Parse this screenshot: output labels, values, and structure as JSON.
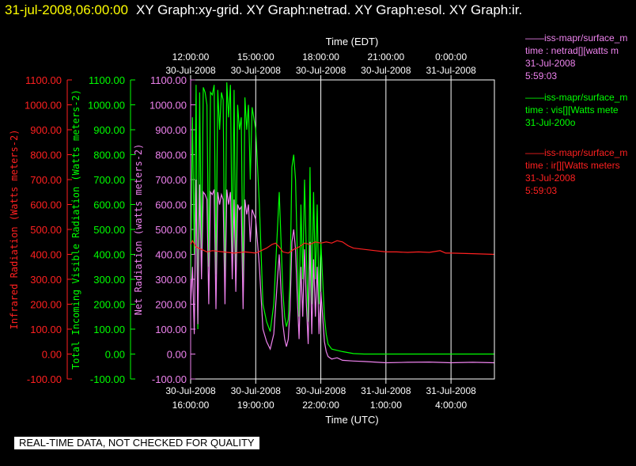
{
  "window": {
    "date_time": "31-jul-2008,06:00:00",
    "graph_names": "XY Graph:xy-grid.  XY Graph:netrad.  XY Graph:esol.  XY Graph:ir."
  },
  "footer": {
    "quality_note": "REAL-TIME DATA, NOT CHECKED FOR QUALITY"
  },
  "legends": [
    {
      "lines": [
        "——iss-mapr/surface_m",
        "time : netrad[][watts m",
        "31-Jul-2008",
        "5:59:03"
      ],
      "color": "#ee82ee"
    },
    {
      "lines": [
        "——iss-mapr/surface_m",
        "time : vis[][Watts mete",
        "31-Jul-200o"
      ],
      "color": "#00ff00"
    },
    {
      "lines": [
        "——iss-mapr/surface_m",
        "time : ir[][Watts meters",
        "31-Jul-2008",
        "5:59:03"
      ],
      "color": "#ff2020"
    }
  ],
  "chart_data": {
    "type": "line",
    "top_axis_title": "Time (EDT)",
    "bottom_axis_title": "Time (UTC)",
    "top_ticks": [
      {
        "date": "30-Jul-2008",
        "time": "12:00:00"
      },
      {
        "date": "30-Jul-2008",
        "time": "15:00:00"
      },
      {
        "date": "30-Jul-2008",
        "time": "18:00:00"
      },
      {
        "date": "30-Jul-2008",
        "time": "21:00:00"
      },
      {
        "date": "31-Jul-2008",
        "time": "0:00:00"
      }
    ],
    "bottom_ticks": [
      {
        "date": "30-Jul-2008",
        "time": "16:00:00"
      },
      {
        "date": "30-Jul-2008",
        "time": "19:00:00"
      },
      {
        "date": "30-Jul-2008",
        "time": "22:00:00"
      },
      {
        "date": "31-Jul-2008",
        "time": "1:00:00"
      },
      {
        "date": "31-Jul-2008",
        "time": "4:00:00"
      }
    ],
    "xlim_utc": [
      "2008-07-30 16:00:00",
      "2008-07-31 06:00:00"
    ],
    "y_axes": [
      {
        "id": "ir",
        "label": "Infrared Radiation (Watts meters-2)",
        "color": "#ff2020",
        "ticks": [
          "1100.00",
          "1000.00",
          "900.00",
          "800.00",
          "700.00",
          "600.00",
          "500.00",
          "400.00",
          "300.00",
          "200.00",
          "100.00",
          "0.00",
          "-100.00"
        ],
        "ylim": [
          -100,
          1100
        ]
      },
      {
        "id": "vis",
        "label": "Total Incoming Visible Radiation (Watts meters-2)",
        "color": "#00ff00",
        "ticks": [
          "1100.00",
          "1000.00",
          "900.00",
          "800.00",
          "700.00",
          "600.00",
          "500.00",
          "400.00",
          "300.00",
          "200.00",
          "100.00",
          "0.00",
          "-100.00"
        ],
        "ylim": [
          -100,
          1100
        ]
      },
      {
        "id": "netrad",
        "label": "Net Radiation (watts meters-2)",
        "color": "#ee82ee",
        "ticks": [
          "1100.00",
          "1000.00",
          "900.00",
          "800.00",
          "700.00",
          "600.00",
          "500.00",
          "400.00",
          "300.00",
          "200.00",
          "100.00",
          "0.00",
          "-100.00"
        ],
        "ylim": [
          -100,
          1100
        ]
      }
    ],
    "series": [
      {
        "color": "#00ff00",
        "axis": "vis",
        "points": [
          [
            "2008-07-30 16:00",
            300
          ],
          [
            "2008-07-30 16:05",
            950
          ],
          [
            "2008-07-30 16:10",
            400
          ],
          [
            "2008-07-30 16:15",
            1080
          ],
          [
            "2008-07-30 16:20",
            100
          ],
          [
            "2008-07-30 16:25",
            1050
          ],
          [
            "2008-07-30 16:30",
            380
          ],
          [
            "2008-07-30 16:35",
            1070
          ],
          [
            "2008-07-30 16:40",
            1050
          ],
          [
            "2008-07-30 16:45",
            1000
          ],
          [
            "2008-07-30 16:50",
            350
          ],
          [
            "2008-07-30 16:55",
            1050
          ],
          [
            "2008-07-30 17:00",
            1040
          ],
          [
            "2008-07-30 17:05",
            1080
          ],
          [
            "2008-07-30 17:10",
            320
          ],
          [
            "2008-07-30 17:15",
            1060
          ],
          [
            "2008-07-30 17:20",
            900
          ],
          [
            "2008-07-30 17:25",
            1050
          ],
          [
            "2008-07-30 17:30",
            1020
          ],
          [
            "2008-07-30 17:35",
            250
          ],
          [
            "2008-07-30 17:40",
            1090
          ],
          [
            "2008-07-30 17:45",
            950
          ],
          [
            "2008-07-30 17:50",
            1080
          ],
          [
            "2008-07-30 17:55",
            400
          ],
          [
            "2008-07-30 18:00",
            1060
          ],
          [
            "2008-07-30 18:05",
            350
          ],
          [
            "2008-07-30 18:10",
            1000
          ],
          [
            "2008-07-30 18:15",
            900
          ],
          [
            "2008-07-30 18:20",
            950
          ],
          [
            "2008-07-30 18:25",
            250
          ],
          [
            "2008-07-30 18:30",
            1030
          ],
          [
            "2008-07-30 18:35",
            900
          ],
          [
            "2008-07-30 18:40",
            1000
          ],
          [
            "2008-07-30 18:45",
            700
          ],
          [
            "2008-07-30 18:50",
            990
          ],
          [
            "2008-07-30 19:00",
            900
          ],
          [
            "2008-07-30 19:10",
            600
          ],
          [
            "2008-07-30 19:20",
            200
          ],
          [
            "2008-07-30 19:30",
            130
          ],
          [
            "2008-07-30 19:40",
            90
          ],
          [
            "2008-07-30 19:50",
            200
          ],
          [
            "2008-07-30 20:00",
            500
          ],
          [
            "2008-07-30 20:05",
            650
          ],
          [
            "2008-07-30 20:10",
            450
          ],
          [
            "2008-07-30 20:15",
            250
          ],
          [
            "2008-07-30 20:20",
            150
          ],
          [
            "2008-07-30 20:25",
            110
          ],
          [
            "2008-07-30 20:30",
            140
          ],
          [
            "2008-07-30 20:35",
            300
          ],
          [
            "2008-07-30 20:40",
            750
          ],
          [
            "2008-07-30 20:45",
            800
          ],
          [
            "2008-07-30 20:50",
            700
          ],
          [
            "2008-07-30 20:55",
            400
          ],
          [
            "2008-07-30 21:00",
            150
          ],
          [
            "2008-07-30 21:05",
            600
          ],
          [
            "2008-07-30 21:10",
            300
          ],
          [
            "2008-07-30 21:15",
            700
          ],
          [
            "2008-07-30 21:20",
            400
          ],
          [
            "2008-07-30 21:25",
            130
          ],
          [
            "2008-07-30 21:30",
            750
          ],
          [
            "2008-07-30 21:35",
            200
          ],
          [
            "2008-07-30 21:40",
            650
          ],
          [
            "2008-07-30 21:45",
            300
          ],
          [
            "2008-07-30 21:50",
            600
          ],
          [
            "2008-07-30 21:55",
            200
          ],
          [
            "2008-07-30 22:00",
            450
          ],
          [
            "2008-07-30 22:05",
            300
          ],
          [
            "2008-07-30 22:10",
            150
          ],
          [
            "2008-07-30 22:15",
            80
          ],
          [
            "2008-07-30 22:20",
            40
          ],
          [
            "2008-07-30 22:30",
            20
          ],
          [
            "2008-07-30 22:45",
            15
          ],
          [
            "2008-07-30 23:00",
            10
          ],
          [
            "2008-07-30 23:30",
            2
          ],
          [
            "2008-07-31 00:00",
            0
          ],
          [
            "2008-07-31 02:00",
            0
          ],
          [
            "2008-07-31 04:00",
            0
          ],
          [
            "2008-07-31 05:59",
            0
          ]
        ]
      },
      {
        "color": "#ee82ee",
        "axis": "netrad",
        "points": [
          [
            "2008-07-30 16:00",
            200
          ],
          [
            "2008-07-30 16:05",
            350
          ],
          [
            "2008-07-30 16:10",
            80
          ],
          [
            "2008-07-30 16:15",
            700
          ],
          [
            "2008-07-30 16:20",
            120
          ],
          [
            "2008-07-30 16:25",
            680
          ],
          [
            "2008-07-30 16:30",
            300
          ],
          [
            "2008-07-30 16:35",
            650
          ],
          [
            "2008-07-30 16:40",
            640
          ],
          [
            "2008-07-30 16:45",
            620
          ],
          [
            "2008-07-30 16:50",
            200
          ],
          [
            "2008-07-30 16:55",
            650
          ],
          [
            "2008-07-30 17:00",
            640
          ],
          [
            "2008-07-30 17:05",
            660
          ],
          [
            "2008-07-30 17:10",
            180
          ],
          [
            "2008-07-30 17:15",
            650
          ],
          [
            "2008-07-30 17:20",
            600
          ],
          [
            "2008-07-30 17:25",
            640
          ],
          [
            "2008-07-30 17:30",
            620
          ],
          [
            "2008-07-30 17:35",
            200
          ],
          [
            "2008-07-30 17:40",
            660
          ],
          [
            "2008-07-30 17:45",
            600
          ],
          [
            "2008-07-30 17:50",
            650
          ],
          [
            "2008-07-30 17:55",
            300
          ],
          [
            "2008-07-30 18:00",
            620
          ],
          [
            "2008-07-30 18:05",
            250
          ],
          [
            "2008-07-30 18:10",
            600
          ],
          [
            "2008-07-30 18:15",
            580
          ],
          [
            "2008-07-30 18:20",
            590
          ],
          [
            "2008-07-30 18:25",
            180
          ],
          [
            "2008-07-30 18:30",
            620
          ],
          [
            "2008-07-30 18:35",
            560
          ],
          [
            "2008-07-30 18:40",
            600
          ],
          [
            "2008-07-30 18:45",
            450
          ],
          [
            "2008-07-30 18:50",
            580
          ],
          [
            "2008-07-30 19:00",
            540
          ],
          [
            "2008-07-30 19:10",
            350
          ],
          [
            "2008-07-30 19:20",
            100
          ],
          [
            "2008-07-30 19:30",
            50
          ],
          [
            "2008-07-30 19:40",
            20
          ],
          [
            "2008-07-30 19:50",
            80
          ],
          [
            "2008-07-30 20:00",
            300
          ],
          [
            "2008-07-30 20:05",
            400
          ],
          [
            "2008-07-30 20:10",
            250
          ],
          [
            "2008-07-30 20:15",
            120
          ],
          [
            "2008-07-30 20:20",
            60
          ],
          [
            "2008-07-30 20:25",
            30
          ],
          [
            "2008-07-30 20:30",
            60
          ],
          [
            "2008-07-30 20:35",
            180
          ],
          [
            "2008-07-30 20:40",
            450
          ],
          [
            "2008-07-30 20:45",
            500
          ],
          [
            "2008-07-30 20:50",
            420
          ],
          [
            "2008-07-30 20:55",
            220
          ],
          [
            "2008-07-30 21:00",
            60
          ],
          [
            "2008-07-30 21:05",
            350
          ],
          [
            "2008-07-30 21:10",
            150
          ],
          [
            "2008-07-30 21:15",
            420
          ],
          [
            "2008-07-30 21:20",
            200
          ],
          [
            "2008-07-30 21:25",
            40
          ],
          [
            "2008-07-30 21:30",
            450
          ],
          [
            "2008-07-30 21:35",
            80
          ],
          [
            "2008-07-30 21:40",
            380
          ],
          [
            "2008-07-30 21:45",
            150
          ],
          [
            "2008-07-30 21:50",
            350
          ],
          [
            "2008-07-30 21:55",
            80
          ],
          [
            "2008-07-30 22:00",
            250
          ],
          [
            "2008-07-30 22:05",
            150
          ],
          [
            "2008-07-30 22:10",
            50
          ],
          [
            "2008-07-30 22:15",
            10
          ],
          [
            "2008-07-30 22:20",
            -10
          ],
          [
            "2008-07-30 22:30",
            -20
          ],
          [
            "2008-07-30 22:45",
            -15
          ],
          [
            "2008-07-30 23:00",
            -25
          ],
          [
            "2008-07-30 23:30",
            -28
          ],
          [
            "2008-07-31 00:00",
            -30
          ],
          [
            "2008-07-31 01:00",
            -35
          ],
          [
            "2008-07-31 02:00",
            -33
          ],
          [
            "2008-07-31 03:00",
            -32
          ],
          [
            "2008-07-31 04:00",
            -35
          ],
          [
            "2008-07-31 05:00",
            -33
          ],
          [
            "2008-07-31 05:59",
            -35
          ]
        ]
      },
      {
        "color": "#ff2020",
        "axis": "ir",
        "points": [
          [
            "2008-07-30 16:00",
            440
          ],
          [
            "2008-07-30 16:05",
            455
          ],
          [
            "2008-07-30 16:15",
            430
          ],
          [
            "2008-07-30 16:30",
            420
          ],
          [
            "2008-07-30 16:45",
            410
          ],
          [
            "2008-07-30 17:00",
            415
          ],
          [
            "2008-07-30 17:30",
            410
          ],
          [
            "2008-07-30 18:00",
            405
          ],
          [
            "2008-07-30 18:30",
            410
          ],
          [
            "2008-07-30 19:00",
            405
          ],
          [
            "2008-07-30 19:15",
            415
          ],
          [
            "2008-07-30 19:30",
            425
          ],
          [
            "2008-07-30 19:45",
            440
          ],
          [
            "2008-07-30 19:55",
            445
          ],
          [
            "2008-07-30 20:05",
            430
          ],
          [
            "2008-07-30 20:15",
            410
          ],
          [
            "2008-07-30 20:30",
            405
          ],
          [
            "2008-07-30 20:45",
            420
          ],
          [
            "2008-07-30 21:00",
            430
          ],
          [
            "2008-07-30 21:15",
            445
          ],
          [
            "2008-07-30 21:30",
            440
          ],
          [
            "2008-07-30 21:45",
            450
          ],
          [
            "2008-07-30 22:00",
            445
          ],
          [
            "2008-07-30 22:15",
            450
          ],
          [
            "2008-07-30 22:30",
            445
          ],
          [
            "2008-07-30 22:45",
            455
          ],
          [
            "2008-07-30 23:00",
            450
          ],
          [
            "2008-07-30 23:15",
            435
          ],
          [
            "2008-07-30 23:30",
            425
          ],
          [
            "2008-07-31 00:00",
            420
          ],
          [
            "2008-07-31 00:30",
            415
          ],
          [
            "2008-07-31 01:00",
            410
          ],
          [
            "2008-07-31 01:30",
            410
          ],
          [
            "2008-07-31 02:00",
            408
          ],
          [
            "2008-07-31 02:30",
            410
          ],
          [
            "2008-07-31 03:00",
            408
          ],
          [
            "2008-07-31 03:30",
            415
          ],
          [
            "2008-07-31 03:45",
            405
          ],
          [
            "2008-07-31 04:00",
            405
          ],
          [
            "2008-07-31 05:00",
            403
          ],
          [
            "2008-07-31 05:59",
            400
          ]
        ]
      }
    ]
  }
}
